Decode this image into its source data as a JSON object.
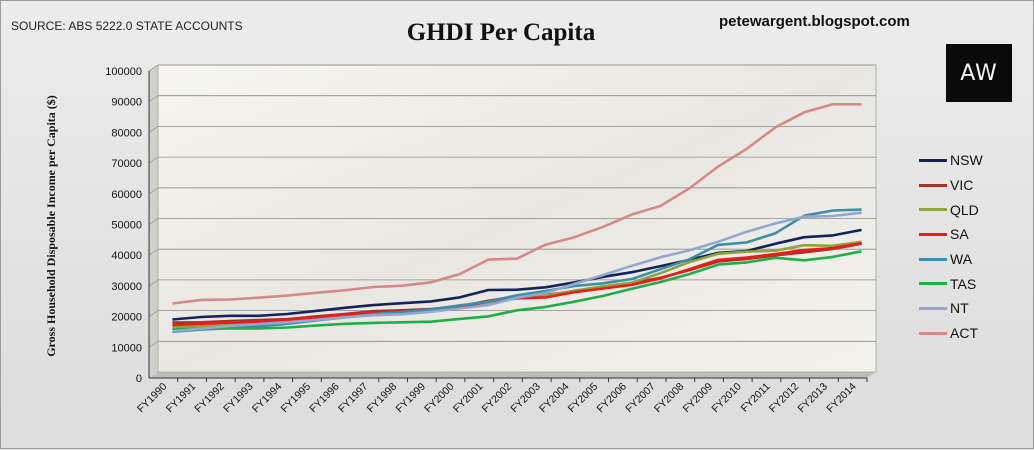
{
  "header": {
    "source": "SOURCE: ABS 5222.0  STATE ACCOUNTS",
    "title": "GHDI  Per Capita",
    "blog": "petewargent.blogspot.com",
    "logo_text": "AW"
  },
  "chart_data": {
    "type": "line",
    "title": "GHDI  Per Capita",
    "xlabel": "",
    "ylabel": "Gross Household Disposable Income per Capita ($)",
    "ylim": [
      0,
      100000
    ],
    "yticks": [
      0,
      10000,
      20000,
      30000,
      40000,
      50000,
      60000,
      70000,
      80000,
      90000,
      100000
    ],
    "grid": true,
    "legend_position": "right",
    "categories": [
      "FY1990",
      "FY1991",
      "FY1992",
      "FY1993",
      "FY1994",
      "FY1995",
      "FY1996",
      "FY1997",
      "FY1998",
      "FY1999",
      "FY2000",
      "FY2001",
      "FY2002",
      "FY2003",
      "FY2004",
      "FY2005",
      "FY2006",
      "FY2007",
      "FY2008",
      "FY2009",
      "FY2010",
      "FY2011",
      "FY2012",
      "FY2013",
      "FY2014"
    ],
    "series": [
      {
        "name": "NSW",
        "color": "#13245a",
        "values": [
          17100,
          17900,
          18300,
          18300,
          18900,
          19900,
          20900,
          21800,
          22400,
          23000,
          24300,
          26700,
          26800,
          27600,
          29200,
          31000,
          32500,
          34500,
          36500,
          38800,
          39400,
          41800,
          43900,
          44500,
          46300
        ]
      },
      {
        "name": "VIC",
        "color": "#a8322e",
        "values": [
          16100,
          16200,
          16600,
          16900,
          17200,
          18100,
          18900,
          19800,
          20100,
          20500,
          21400,
          23200,
          24700,
          25100,
          26300,
          27700,
          29000,
          30700,
          33200,
          36000,
          36800,
          38000,
          39000,
          40100,
          41800
        ]
      },
      {
        "name": "QLD",
        "color": "#8da53a",
        "values": [
          14600,
          14900,
          15300,
          15600,
          16300,
          17100,
          17900,
          18600,
          19000,
          19700,
          21000,
          22600,
          24000,
          24900,
          26500,
          27900,
          29100,
          32200,
          35800,
          38500,
          39200,
          39500,
          41300,
          41100,
          42400
        ]
      },
      {
        "name": "SA",
        "color": "#ee1c18",
        "values": [
          15300,
          15700,
          16100,
          16400,
          16900,
          17800,
          18700,
          19400,
          19600,
          20100,
          21000,
          23000,
          24000,
          24300,
          26000,
          27200,
          28400,
          30500,
          33500,
          36500,
          37300,
          38400,
          39700,
          40400,
          42000
        ]
      },
      {
        "name": "WA",
        "color": "#3b8fa6",
        "values": [
          13100,
          13800,
          14300,
          14900,
          15700,
          16800,
          17800,
          18900,
          19500,
          20400,
          21700,
          22900,
          25000,
          26400,
          28000,
          28900,
          30300,
          33500,
          36700,
          41400,
          42200,
          45200,
          50900,
          52600,
          52900
        ]
      },
      {
        "name": "TAS",
        "color": "#1fae48",
        "values": [
          13800,
          14100,
          14200,
          14200,
          14500,
          15100,
          15700,
          16000,
          16200,
          16400,
          17300,
          18100,
          20100,
          21200,
          22900,
          24800,
          27100,
          29300,
          31900,
          35000,
          35700,
          37200,
          36400,
          37500,
          39300
        ]
      },
      {
        "name": "NT",
        "color": "#94a7d0",
        "values": [
          13300,
          14100,
          15000,
          15600,
          16200,
          17000,
          17800,
          18500,
          18800,
          19600,
          20700,
          21800,
          24200,
          25700,
          28700,
          31600,
          34600,
          37400,
          39600,
          42400,
          45700,
          48400,
          50600,
          50800,
          51900
        ]
      },
      {
        "name": "ACT",
        "color": "#d48a86",
        "values": [
          22300,
          23500,
          23600,
          24200,
          24900,
          25800,
          26600,
          27700,
          28100,
          29200,
          31900,
          36600,
          36900,
          41500,
          43900,
          47300,
          51300,
          54100,
          59800,
          66900,
          72700,
          79700,
          84600,
          87200,
          87200
        ]
      }
    ]
  }
}
